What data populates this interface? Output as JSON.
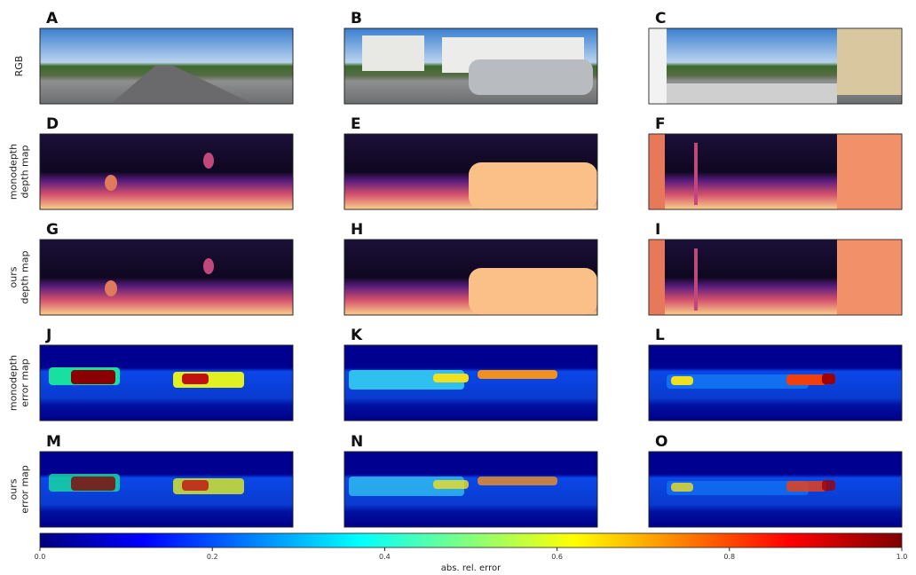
{
  "panels": [
    "A",
    "B",
    "C",
    "D",
    "E",
    "F",
    "G",
    "H",
    "I",
    "J",
    "K",
    "L",
    "M",
    "N",
    "O"
  ],
  "rows": [
    [
      "RGB"
    ],
    [
      "monodepth",
      "depth map"
    ],
    [
      "ours",
      "depth map"
    ],
    [
      "monodepth",
      "error map"
    ],
    [
      "ours",
      "error map"
    ]
  ],
  "colorbar": {
    "label": "abs. rel. error",
    "lim": [
      0,
      1
    ],
    "ticks": [
      {
        "value": 0,
        "label": "0.0"
      },
      {
        "value": 0.2,
        "label": "0.2"
      },
      {
        "value": 0.4,
        "label": "0.4"
      },
      {
        "value": 0.6,
        "label": "0.6"
      },
      {
        "value": 0.8,
        "label": "0.8"
      },
      {
        "value": 1,
        "label": "1.0"
      }
    ]
  }
}
